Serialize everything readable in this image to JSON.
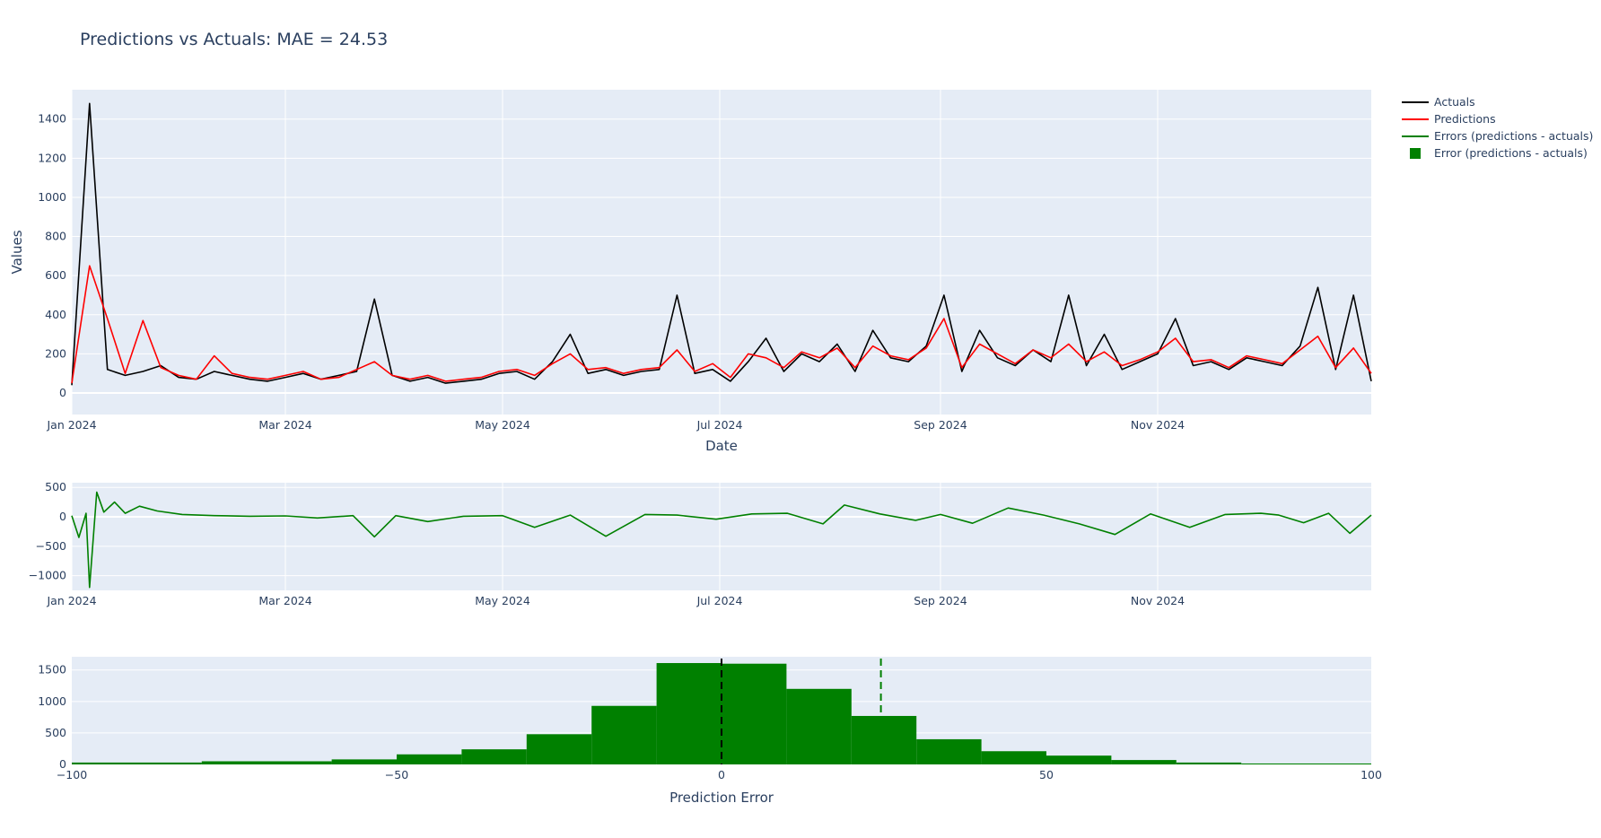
{
  "colors": {
    "plot_bg": "#e5ecf6",
    "grid": "#ffffff",
    "text": "#2a3f5f",
    "actuals": "#000000",
    "predictions": "#ff0000",
    "errors": "#008000"
  },
  "title": "Predictions vs Actuals: MAE = 24.53",
  "legend": [
    {
      "label": "Actuals",
      "color": "#000000",
      "marker": "line"
    },
    {
      "label": "Predictions",
      "color": "#ff0000",
      "marker": "line"
    },
    {
      "label": "Errors (predictions - actuals)",
      "color": "#008000",
      "marker": "line"
    },
    {
      "label": "Error (predictions - actuals)",
      "color": "#008000",
      "marker": "square"
    }
  ],
  "chart_data": [
    {
      "type": "line",
      "xlabel": "Date",
      "ylabel": "Values",
      "xlim": [
        "2024-01-01",
        "2024-12-31"
      ],
      "ylim": [
        -110,
        1550
      ],
      "x_ticks": [
        {
          "value": "2024-01-01",
          "label": "Jan 2024"
        },
        {
          "value": "2024-03-01",
          "label": "Mar 2024"
        },
        {
          "value": "2024-05-01",
          "label": "May 2024"
        },
        {
          "value": "2024-07-01",
          "label": "Jul 2024"
        },
        {
          "value": "2024-09-01",
          "label": "Sep 2024"
        },
        {
          "value": "2024-11-01",
          "label": "Nov 2024"
        }
      ],
      "y_ticks": [
        0,
        200,
        400,
        600,
        800,
        1000,
        1200,
        1400
      ],
      "series": [
        {
          "name": "Actuals",
          "color": "#000000",
          "x": [
            "2024-01-01",
            "2024-01-06",
            "2024-01-11",
            "2024-01-16",
            "2024-01-21",
            "2024-01-26",
            "2024-01-31",
            "2024-02-05",
            "2024-02-10",
            "2024-02-15",
            "2024-02-20",
            "2024-02-25",
            "2024-03-01",
            "2024-03-06",
            "2024-03-11",
            "2024-03-16",
            "2024-03-21",
            "2024-03-26",
            "2024-03-31",
            "2024-04-05",
            "2024-04-10",
            "2024-04-15",
            "2024-04-20",
            "2024-04-25",
            "2024-04-30",
            "2024-05-05",
            "2024-05-10",
            "2024-05-15",
            "2024-05-20",
            "2024-05-25",
            "2024-05-30",
            "2024-06-04",
            "2024-06-09",
            "2024-06-14",
            "2024-06-19",
            "2024-06-24",
            "2024-06-29",
            "2024-07-04",
            "2024-07-09",
            "2024-07-14",
            "2024-07-19",
            "2024-07-24",
            "2024-07-29",
            "2024-08-03",
            "2024-08-08",
            "2024-08-13",
            "2024-08-18",
            "2024-08-23",
            "2024-08-28",
            "2024-09-02",
            "2024-09-07",
            "2024-09-12",
            "2024-09-17",
            "2024-09-22",
            "2024-09-27",
            "2024-10-02",
            "2024-10-07",
            "2024-10-12",
            "2024-10-17",
            "2024-10-22",
            "2024-10-27",
            "2024-11-01",
            "2024-11-06",
            "2024-11-11",
            "2024-11-16",
            "2024-11-21",
            "2024-11-26",
            "2024-12-01",
            "2024-12-06",
            "2024-12-11",
            "2024-12-16",
            "2024-12-21",
            "2024-12-26",
            "2024-12-31"
          ],
          "values": [
            40,
            1480,
            120,
            90,
            110,
            140,
            80,
            70,
            110,
            90,
            70,
            60,
            80,
            100,
            70,
            90,
            110,
            480,
            90,
            60,
            80,
            50,
            60,
            70,
            100,
            110,
            70,
            160,
            300,
            100,
            120,
            90,
            110,
            120,
            500,
            100,
            120,
            60,
            160,
            280,
            110,
            200,
            160,
            250,
            110,
            320,
            180,
            160,
            240,
            500,
            110,
            320,
            180,
            140,
            220,
            160,
            500,
            140,
            300,
            120,
            160,
            200,
            380,
            140,
            160,
            120,
            180,
            160,
            140,
            240,
            540,
            120,
            500,
            60
          ]
        },
        {
          "name": "Predictions",
          "color": "#ff0000",
          "x": [
            "2024-01-01",
            "2024-01-06",
            "2024-01-11",
            "2024-01-16",
            "2024-01-21",
            "2024-01-26",
            "2024-01-31",
            "2024-02-05",
            "2024-02-10",
            "2024-02-15",
            "2024-02-20",
            "2024-02-25",
            "2024-03-01",
            "2024-03-06",
            "2024-03-11",
            "2024-03-16",
            "2024-03-21",
            "2024-03-26",
            "2024-03-31",
            "2024-04-05",
            "2024-04-10",
            "2024-04-15",
            "2024-04-20",
            "2024-04-25",
            "2024-04-30",
            "2024-05-05",
            "2024-05-10",
            "2024-05-15",
            "2024-05-20",
            "2024-05-25",
            "2024-05-30",
            "2024-06-04",
            "2024-06-09",
            "2024-06-14",
            "2024-06-19",
            "2024-06-24",
            "2024-06-29",
            "2024-07-04",
            "2024-07-09",
            "2024-07-14",
            "2024-07-19",
            "2024-07-24",
            "2024-07-29",
            "2024-08-03",
            "2024-08-08",
            "2024-08-13",
            "2024-08-18",
            "2024-08-23",
            "2024-08-28",
            "2024-09-02",
            "2024-09-07",
            "2024-09-12",
            "2024-09-17",
            "2024-09-22",
            "2024-09-27",
            "2024-10-02",
            "2024-10-07",
            "2024-10-12",
            "2024-10-17",
            "2024-10-22",
            "2024-10-27",
            "2024-11-01",
            "2024-11-06",
            "2024-11-11",
            "2024-11-16",
            "2024-11-21",
            "2024-11-26",
            "2024-12-01",
            "2024-12-06",
            "2024-12-11",
            "2024-12-16",
            "2024-12-21",
            "2024-12-26",
            "2024-12-31"
          ],
          "values": [
            50,
            650,
            380,
            100,
            370,
            130,
            90,
            70,
            190,
            100,
            80,
            70,
            90,
            110,
            70,
            80,
            120,
            160,
            90,
            70,
            90,
            60,
            70,
            80,
            110,
            120,
            90,
            150,
            200,
            120,
            130,
            100,
            120,
            130,
            220,
            110,
            150,
            80,
            200,
            180,
            130,
            210,
            180,
            230,
            130,
            240,
            190,
            170,
            230,
            380,
            130,
            250,
            200,
            150,
            220,
            180,
            250,
            160,
            210,
            140,
            170,
            210,
            280,
            160,
            170,
            130,
            190,
            170,
            150,
            220,
            290,
            130,
            230,
            100
          ]
        }
      ]
    },
    {
      "type": "line",
      "xlim": [
        "2024-01-01",
        "2024-12-31"
      ],
      "ylim": [
        -1250,
        580
      ],
      "x_ticks": [
        {
          "value": "2024-01-01",
          "label": "Jan 2024"
        },
        {
          "value": "2024-03-01",
          "label": "Mar 2024"
        },
        {
          "value": "2024-05-01",
          "label": "May 2024"
        },
        {
          "value": "2024-07-01",
          "label": "Jul 2024"
        },
        {
          "value": "2024-09-01",
          "label": "Sep 2024"
        },
        {
          "value": "2024-11-01",
          "label": "Nov 2024"
        }
      ],
      "y_ticks": [
        -1000,
        -500,
        0,
        500
      ],
      "series": [
        {
          "name": "Errors (predictions - actuals)",
          "color": "#008000",
          "x": [
            "2024-01-01",
            "2024-01-03",
            "2024-01-05",
            "2024-01-06",
            "2024-01-08",
            "2024-01-10",
            "2024-01-13",
            "2024-01-16",
            "2024-01-20",
            "2024-01-25",
            "2024-02-01",
            "2024-02-10",
            "2024-02-20",
            "2024-03-01",
            "2024-03-10",
            "2024-03-20",
            "2024-03-26",
            "2024-04-01",
            "2024-04-10",
            "2024-04-20",
            "2024-05-01",
            "2024-05-10",
            "2024-05-20",
            "2024-05-30",
            "2024-06-10",
            "2024-06-19",
            "2024-06-30",
            "2024-07-10",
            "2024-07-20",
            "2024-07-30",
            "2024-08-05",
            "2024-08-15",
            "2024-08-25",
            "2024-09-01",
            "2024-09-10",
            "2024-09-20",
            "2024-09-30",
            "2024-10-10",
            "2024-10-20",
            "2024-10-30",
            "2024-11-10",
            "2024-11-20",
            "2024-11-30",
            "2024-12-05",
            "2024-12-12",
            "2024-12-19",
            "2024-12-25",
            "2024-12-31"
          ],
          "values": [
            20,
            -350,
            60,
            -1200,
            420,
            80,
            250,
            60,
            180,
            100,
            40,
            20,
            10,
            15,
            -20,
            20,
            -340,
            20,
            -80,
            10,
            20,
            -180,
            30,
            -330,
            40,
            30,
            -40,
            50,
            60,
            -120,
            200,
            50,
            -60,
            40,
            -110,
            150,
            30,
            -120,
            -300,
            50,
            -180,
            40,
            60,
            30,
            -100,
            60,
            -280,
            30
          ]
        }
      ]
    },
    {
      "type": "bar",
      "xlabel": "Prediction Error",
      "xlim": [
        -100,
        100
      ],
      "ylim": [
        0,
        1710
      ],
      "x_ticks": [
        {
          "value": -100,
          "label": "−100"
        },
        {
          "value": -50,
          "label": "−50"
        },
        {
          "value": 0,
          "label": "0"
        },
        {
          "value": 50,
          "label": "50"
        },
        {
          "value": 100,
          "label": "100"
        }
      ],
      "y_ticks": [
        0,
        500,
        1000,
        1500
      ],
      "bin_edges": [
        -100,
        -80,
        -60,
        -50,
        -40,
        -30,
        -20,
        -10,
        0,
        10,
        20,
        30,
        40,
        50,
        60,
        70,
        80,
        100
      ],
      "values": [
        30,
        50,
        80,
        160,
        240,
        480,
        930,
        1610,
        1600,
        1200,
        770,
        400,
        210,
        140,
        70,
        30,
        15
      ],
      "reference_lines": [
        {
          "x": 0,
          "color": "#000000",
          "style": "dashed"
        },
        {
          "x": 24.53,
          "color": "#008000",
          "style": "dashed"
        }
      ]
    }
  ]
}
